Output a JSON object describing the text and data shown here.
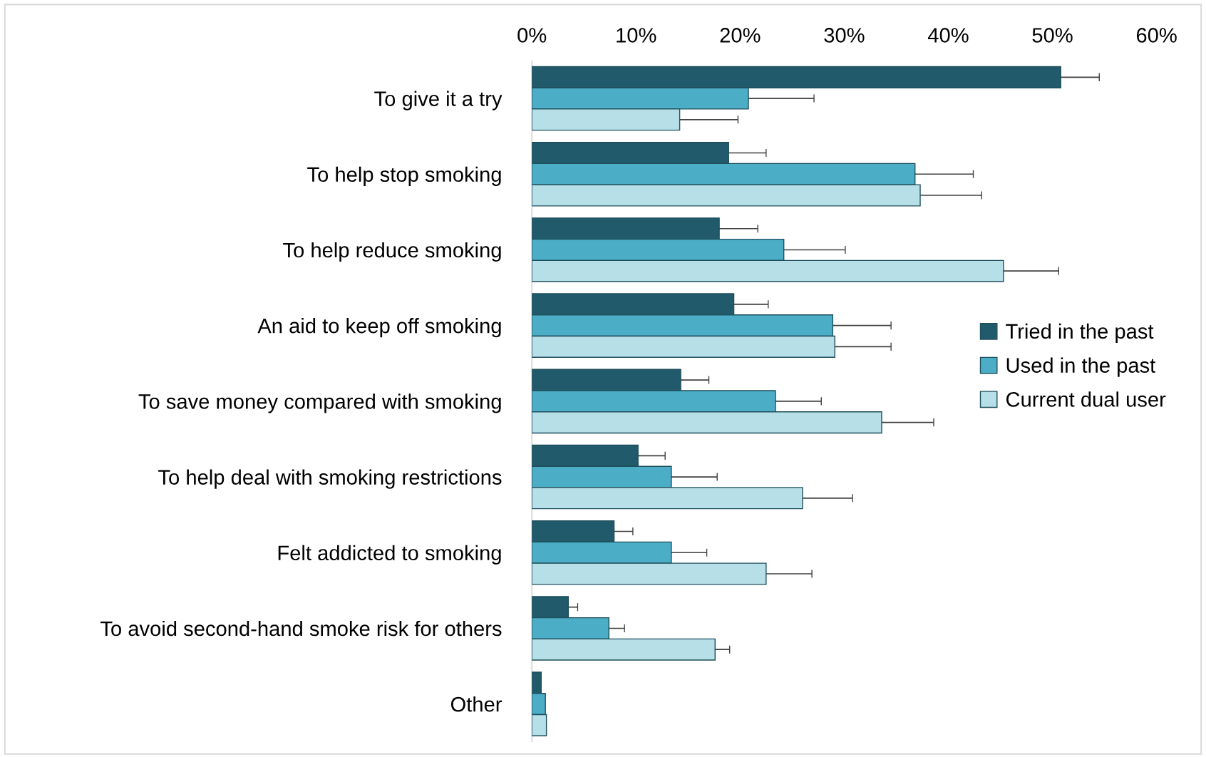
{
  "chart_data": {
    "type": "bar",
    "orientation": "horizontal",
    "categories": [
      "To give it a try",
      "To help stop smoking",
      "To help reduce smoking",
      "An aid to keep off smoking",
      "To save money compared with smoking",
      "To help deal with smoking restrictions",
      "Felt addicted to smoking",
      "To avoid second-hand smoke risk for others",
      "Other"
    ],
    "series": [
      {
        "name": "Tried in the past",
        "color": "#215a6a",
        "values": [
          50.8,
          18.9,
          18.0,
          19.4,
          14.3,
          10.2,
          7.9,
          3.5,
          0.9
        ],
        "errors": [
          3.7,
          3.6,
          3.7,
          3.3,
          2.7,
          2.6,
          1.8,
          0.9,
          null
        ]
      },
      {
        "name": "Used in the past",
        "color": "#4badc6",
        "values": [
          20.8,
          36.8,
          24.2,
          28.9,
          23.4,
          13.4,
          13.4,
          7.4,
          1.3
        ],
        "errors": [
          6.3,
          5.6,
          5.9,
          5.6,
          4.4,
          4.4,
          3.4,
          1.5,
          null
        ]
      },
      {
        "name": "Current dual user",
        "color": "#b7dfe8",
        "values": [
          14.2,
          37.3,
          45.3,
          29.1,
          33.6,
          26.0,
          22.5,
          17.6,
          1.4
        ],
        "errors": [
          5.6,
          5.9,
          5.3,
          5.4,
          5.0,
          4.8,
          4.4,
          1.4,
          null
        ]
      }
    ],
    "xlim": [
      0,
      60
    ],
    "xticks": [
      {
        "value": 0,
        "label": "0%"
      },
      {
        "value": 10,
        "label": "10%"
      },
      {
        "value": 20,
        "label": "20%"
      },
      {
        "value": 30,
        "label": "30%"
      },
      {
        "value": 40,
        "label": "40%"
      },
      {
        "value": 50,
        "label": "50%"
      },
      {
        "value": 60,
        "label": "60%"
      }
    ],
    "grid": false,
    "legend": "right"
  }
}
